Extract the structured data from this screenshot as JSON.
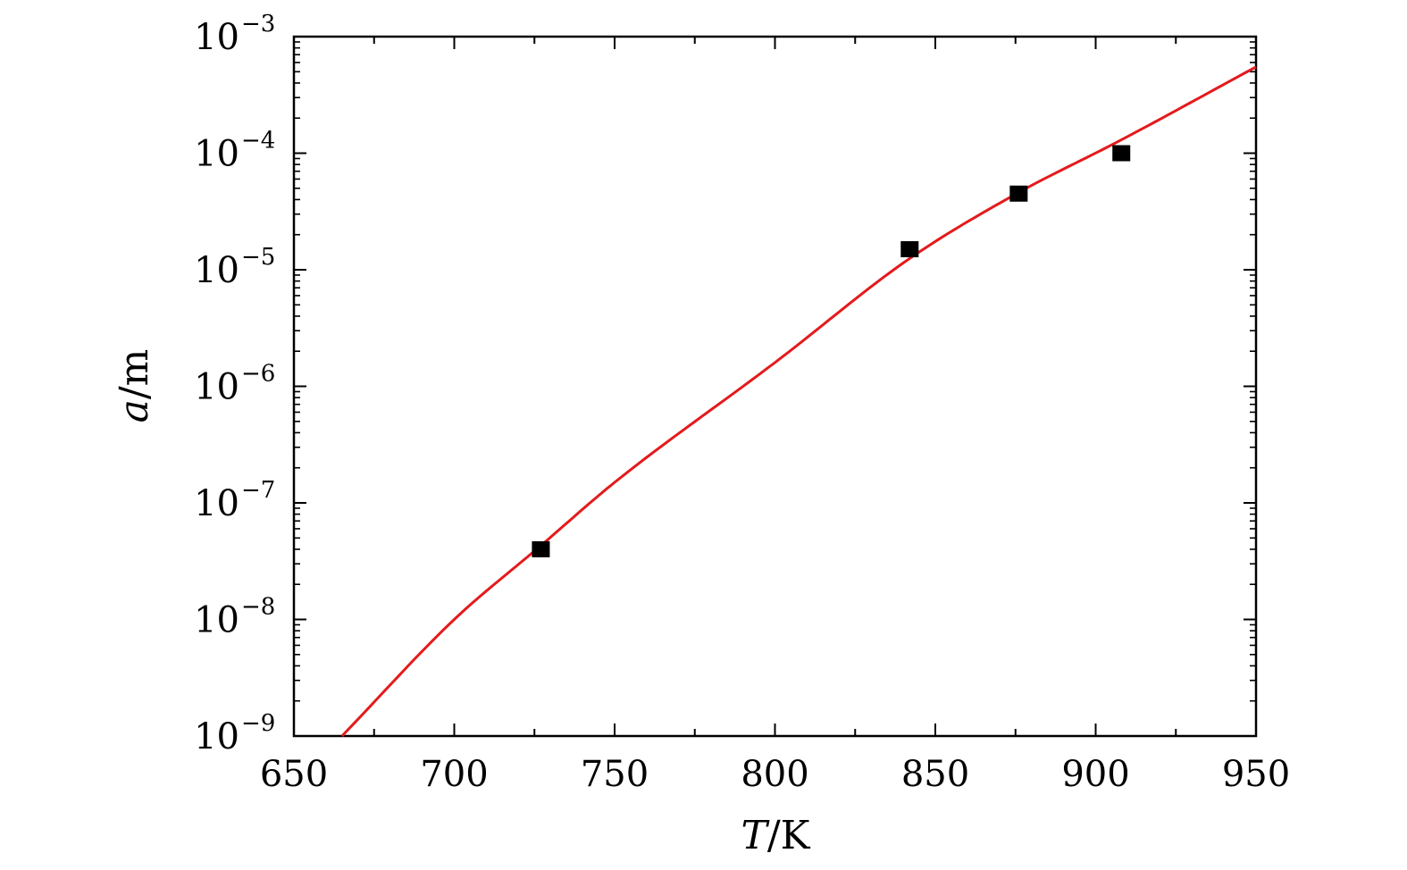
{
  "chart_data": {
    "type": "scatter",
    "xlabel": "T/K",
    "xlabel_var": "T",
    "xlabel_unit": "/K",
    "ylabel": "a/m",
    "ylabel_var": "a",
    "ylabel_unit": "/m",
    "xlim": [
      650,
      950
    ],
    "ylim": [
      1e-09,
      0.001
    ],
    "yscale": "log",
    "grid": false,
    "x_ticks": [
      {
        "value": 650,
        "label": "650"
      },
      {
        "value": 700,
        "label": "700"
      },
      {
        "value": 750,
        "label": "750"
      },
      {
        "value": 800,
        "label": "800"
      },
      {
        "value": 850,
        "label": "850"
      },
      {
        "value": 900,
        "label": "900"
      },
      {
        "value": 950,
        "label": "950"
      }
    ],
    "y_ticks": [
      {
        "value": 1e-09,
        "base": "10",
        "exp": "−9"
      },
      {
        "value": 1e-08,
        "base": "10",
        "exp": "−8"
      },
      {
        "value": 1e-07,
        "base": "10",
        "exp": "−7"
      },
      {
        "value": 1e-06,
        "base": "10",
        "exp": "−6"
      },
      {
        "value": 1e-05,
        "base": "10",
        "exp": "−5"
      },
      {
        "value": 0.0001,
        "base": "10",
        "exp": "−4"
      },
      {
        "value": 0.001,
        "base": "10",
        "exp": "−3"
      }
    ],
    "series": [
      {
        "kind": "points",
        "marker": "square",
        "color": "#000000",
        "x": [
          727,
          842,
          876,
          908
        ],
        "y": [
          4e-08,
          1.5e-05,
          4.5e-05,
          0.0001
        ]
      },
      {
        "kind": "line",
        "color": "#e41a1c",
        "x": [
          665,
          700,
          727,
          750,
          800,
          842,
          876,
          908,
          950
        ],
        "y": [
          1e-09,
          1e-08,
          4.3e-08,
          1.5e-07,
          1.6e-06,
          1.25e-05,
          4.6e-05,
          0.00013,
          0.00055
        ]
      }
    ]
  }
}
